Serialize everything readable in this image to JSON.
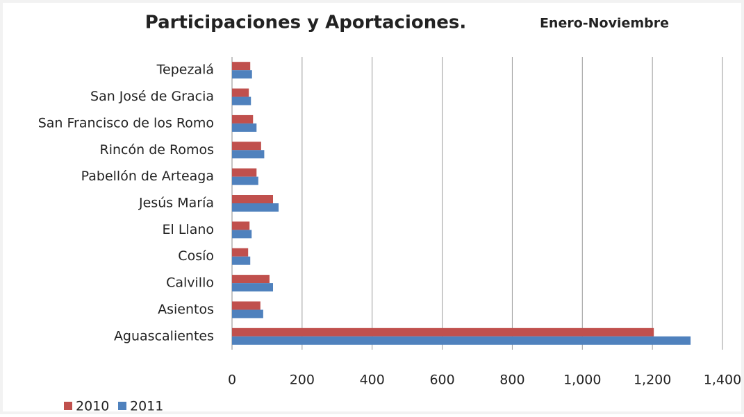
{
  "chart_data": {
    "type": "hbar",
    "title": "Participaciones y Aportaciones.",
    "subtitle": "Enero-Noviembre",
    "categories": [
      "Tepezalá",
      "San José de Gracia",
      "San Francisco de los Romo",
      "Rincón de Romos",
      "Pabellón de Arteaga",
      "Jesús María",
      "El Llano",
      "Cosío",
      "Calvillo",
      "Asientos",
      "Aguascalientes"
    ],
    "series": [
      {
        "name": "2010",
        "color": "#c0504d",
        "values": [
          52,
          48,
          60,
          83,
          70,
          117,
          50,
          46,
          107,
          81,
          1204
        ]
      },
      {
        "name": "2011",
        "color": "#4f81bd",
        "values": [
          57,
          54,
          70,
          92,
          75,
          133,
          56,
          52,
          117,
          89,
          1309
        ]
      }
    ],
    "xlim": [
      0,
      1400
    ],
    "xticks": [
      0,
      200,
      400,
      600,
      800,
      {
        "value": 1000,
        "label": "1,000"
      },
      {
        "value": 1200,
        "label": "1,200"
      },
      {
        "value": 1400,
        "label": "1,400"
      }
    ],
    "grid": true,
    "legend": "bottom-left"
  }
}
